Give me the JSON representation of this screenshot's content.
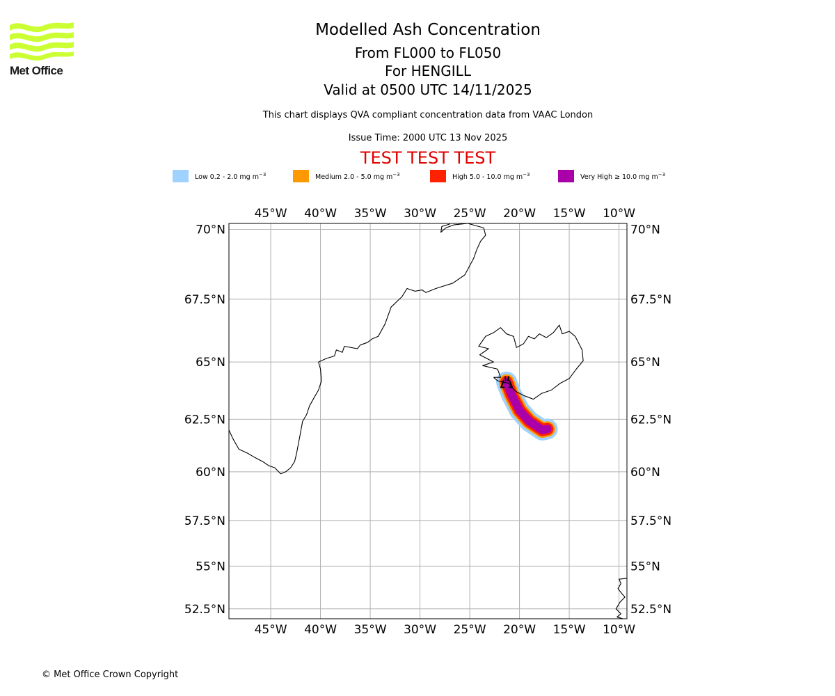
{
  "logo": {
    "name": "Met Office",
    "color": "#ccff33"
  },
  "header": {
    "title": "Modelled Ash Concentration",
    "level_range": "From FL000 to FL050",
    "volcano": "For HENGILL",
    "valid_time": "Valid at 0500 UTC 14/11/2025",
    "description": "This chart displays QVA compliant concentration data from VAAC London",
    "issue_time": "Issue Time: 2000 UTC 13 Nov 2025",
    "test_banner": "TEST TEST TEST",
    "test_banner_color": "#e00000"
  },
  "legend": [
    {
      "label": "Low 0.2 - 2.0 mg m",
      "unit_exp": "−3",
      "color": "#a0d2ff"
    },
    {
      "label": "Medium 2.0 - 5.0 mg m",
      "unit_exp": "−3",
      "color": "#ff9900"
    },
    {
      "label": "High 5.0 - 10.0 mg m",
      "unit_exp": "−3",
      "color": "#ff2200"
    },
    {
      "label": "Very High  ≥  10.0 mg m",
      "unit_exp": "−3",
      "color": "#aa00aa"
    }
  ],
  "footer": {
    "copyright": "© Met Office Crown Copyright"
  },
  "chart_data": {
    "type": "map",
    "projection": "mercator",
    "extent": {
      "lon": [
        -49.2,
        -9.2
      ],
      "lat": [
        51.9,
        70.2
      ]
    },
    "grid": true,
    "lon_ticks": [
      -45,
      -40,
      -35,
      -30,
      -25,
      -20,
      -15,
      -10
    ],
    "lon_tick_labels": [
      "45°W",
      "40°W",
      "35°W",
      "30°W",
      "25°W",
      "20°W",
      "15°W",
      "10°W"
    ],
    "lat_ticks": [
      70,
      67.5,
      65,
      62.5,
      60,
      57.5,
      55,
      52.5
    ],
    "lat_tick_labels": [
      "70°N",
      "67.5°N",
      "65°N",
      "62.5°N",
      "60°N",
      "57.5°N",
      "55°N",
      "52.5°N"
    ],
    "colors": {
      "grid": "#b0b0b0",
      "coast": "#000000"
    },
    "coastlines": [
      {
        "name": "greenland-east-coast",
        "points": [
          [
            -27.4,
            70.05
          ],
          [
            -26.6,
            70.15
          ],
          [
            -25.2,
            70.2
          ],
          [
            -23.6,
            70.05
          ],
          [
            -23.4,
            69.8
          ],
          [
            -23.9,
            69.6
          ],
          [
            -24.3,
            69.3
          ],
          [
            -24.6,
            69.0
          ],
          [
            -25.2,
            68.6
          ],
          [
            -25.5,
            68.4
          ],
          [
            -26.7,
            68.1
          ],
          [
            -28.4,
            67.9
          ],
          [
            -29.4,
            67.75
          ],
          [
            -29.8,
            67.85
          ],
          [
            -30.5,
            67.8
          ],
          [
            -31.3,
            67.9
          ],
          [
            -31.8,
            67.6
          ],
          [
            -32.9,
            67.2
          ],
          [
            -33.5,
            66.55
          ],
          [
            -34.2,
            66.05
          ],
          [
            -34.8,
            65.95
          ],
          [
            -35.3,
            65.8
          ],
          [
            -36.0,
            65.7
          ],
          [
            -36.3,
            65.55
          ],
          [
            -37.6,
            65.65
          ],
          [
            -37.8,
            65.4
          ],
          [
            -38.4,
            65.5
          ],
          [
            -38.6,
            65.25
          ],
          [
            -39.4,
            65.15
          ],
          [
            -40.2,
            65.0
          ],
          [
            -40.0,
            64.7
          ],
          [
            -39.9,
            64.2
          ],
          [
            -40.2,
            63.8
          ],
          [
            -40.6,
            63.5
          ],
          [
            -41.1,
            63.1
          ],
          [
            -41.4,
            62.7
          ],
          [
            -41.8,
            62.4
          ],
          [
            -42.0,
            61.9
          ],
          [
            -42.2,
            61.4
          ],
          [
            -42.4,
            60.9
          ],
          [
            -42.6,
            60.5
          ],
          [
            -43.0,
            60.2
          ],
          [
            -43.5,
            60.0
          ],
          [
            -44.0,
            59.9
          ],
          [
            -44.6,
            60.2
          ],
          [
            -45.2,
            60.3
          ],
          [
            -45.8,
            60.5
          ],
          [
            -46.6,
            60.7
          ],
          [
            -47.3,
            60.9
          ],
          [
            -48.2,
            61.1
          ],
          [
            -48.8,
            61.6
          ],
          [
            -49.2,
            62.0
          ]
        ]
      },
      {
        "name": "greenland-north-inlet",
        "points": [
          [
            -27.4,
            70.05
          ],
          [
            -27.9,
            69.9
          ],
          [
            -27.8,
            70.1
          ],
          [
            -27.0,
            70.18
          ]
        ]
      },
      {
        "name": "iceland",
        "points": [
          [
            -22.6,
            64.35
          ],
          [
            -22.2,
            64.2
          ],
          [
            -21.7,
            64.15
          ],
          [
            -21.1,
            64.1
          ],
          [
            -20.4,
            63.75
          ],
          [
            -19.5,
            63.55
          ],
          [
            -18.6,
            63.4
          ],
          [
            -17.8,
            63.65
          ],
          [
            -16.8,
            63.8
          ],
          [
            -15.9,
            64.1
          ],
          [
            -15.0,
            64.3
          ],
          [
            -14.3,
            64.7
          ],
          [
            -13.6,
            65.05
          ],
          [
            -13.7,
            65.5
          ],
          [
            -14.4,
            66.05
          ],
          [
            -15.0,
            66.25
          ],
          [
            -15.7,
            66.15
          ],
          [
            -16.0,
            66.5
          ],
          [
            -16.6,
            66.2
          ],
          [
            -17.3,
            66.0
          ],
          [
            -18.0,
            66.15
          ],
          [
            -18.5,
            65.95
          ],
          [
            -19.1,
            66.05
          ],
          [
            -19.6,
            65.75
          ],
          [
            -20.3,
            65.6
          ],
          [
            -20.6,
            66.05
          ],
          [
            -21.3,
            66.15
          ],
          [
            -21.9,
            66.4
          ],
          [
            -22.6,
            66.2
          ],
          [
            -23.4,
            66.05
          ],
          [
            -24.1,
            65.65
          ],
          [
            -23.1,
            65.55
          ],
          [
            -24.0,
            65.3
          ],
          [
            -22.6,
            65.0
          ],
          [
            -23.7,
            64.85
          ],
          [
            -22.2,
            64.7
          ],
          [
            -21.9,
            64.35
          ],
          [
            -22.6,
            64.35
          ]
        ]
      }
    ],
    "coastlines_right_edge": [
      {
        "name": "ireland-west-coast",
        "points": [
          [
            -9.2,
            54.3
          ],
          [
            -10.0,
            54.25
          ],
          [
            -9.8,
            54.0
          ],
          [
            -10.1,
            53.7
          ],
          [
            -9.7,
            53.4
          ],
          [
            -9.4,
            53.2
          ],
          [
            -9.9,
            52.9
          ],
          [
            -10.3,
            52.5
          ],
          [
            -9.8,
            52.2
          ],
          [
            -10.2,
            52.0
          ],
          [
            -9.6,
            51.9
          ]
        ]
      }
    ],
    "volcano": {
      "name": "HENGILL",
      "lon": -21.3,
      "lat": 64.1
    },
    "ash_plume": {
      "axis": [
        [
          -21.3,
          64.15
        ],
        [
          -20.8,
          63.6
        ],
        [
          -20.0,
          62.9
        ],
        [
          -19.0,
          62.4
        ],
        [
          -17.7,
          62.0
        ],
        [
          -17.2,
          62.05
        ]
      ],
      "levels": [
        {
          "level": "low",
          "color": "#a0d2ff",
          "half_width_deg": 1.05
        },
        {
          "level": "medium",
          "color": "#ff9900",
          "half_width_deg": 0.78
        },
        {
          "level": "high",
          "color": "#ff2200",
          "half_width_deg": 0.62
        },
        {
          "level": "very-high",
          "color": "#aa00aa",
          "half_width_deg": 0.42
        }
      ]
    }
  }
}
